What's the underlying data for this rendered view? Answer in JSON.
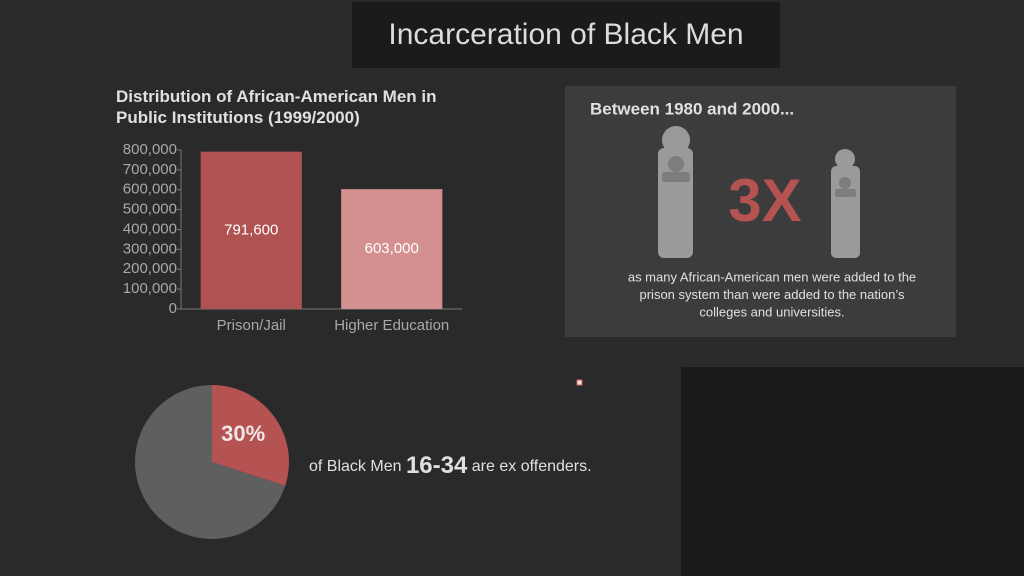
{
  "title": "Incarceration of Black Men",
  "chart_data": [
    {
      "type": "bar",
      "title": "Distribution of African-American Men in Public Institutions (1999/2000)",
      "categories": [
        "Prison/Jail",
        "Higher Education"
      ],
      "values": [
        791600,
        603000
      ],
      "value_labels": [
        "791,600",
        "603,000"
      ],
      "colors": [
        "#b05252",
        "#d48f8f"
      ],
      "ylim": [
        0,
        800000
      ],
      "yticks": [
        0,
        {
          "value": 100000,
          "label": "100,000"
        },
        {
          "value": 200000,
          "label": "200,000"
        },
        {
          "value": 300000,
          "label": "300,000"
        },
        {
          "value": 400000,
          "label": "400,000"
        },
        {
          "value": 500000,
          "label": "500,000"
        },
        {
          "value": 600000,
          "label": "600,000"
        },
        {
          "value": 700000,
          "label": "700,000"
        },
        {
          "value": 800000,
          "label": "800,000"
        }
      ]
    },
    {
      "type": "pie",
      "values": [
        30,
        70
      ],
      "value_labels": [
        "30%",
        null
      ],
      "colors": [
        "#b55252",
        "#5f5f5f"
      ]
    }
  ],
  "pie_caption": {
    "prefix": "of Black Men",
    "highlight": "16-34",
    "suffix": "are ex offenders."
  },
  "panel": {
    "heading": "Between 1980 and 2000...",
    "big": "3X",
    "lines": [
      "as many African-American men were added to the",
      "prison system than were added to the nation’s",
      "colleges and universities."
    ]
  }
}
